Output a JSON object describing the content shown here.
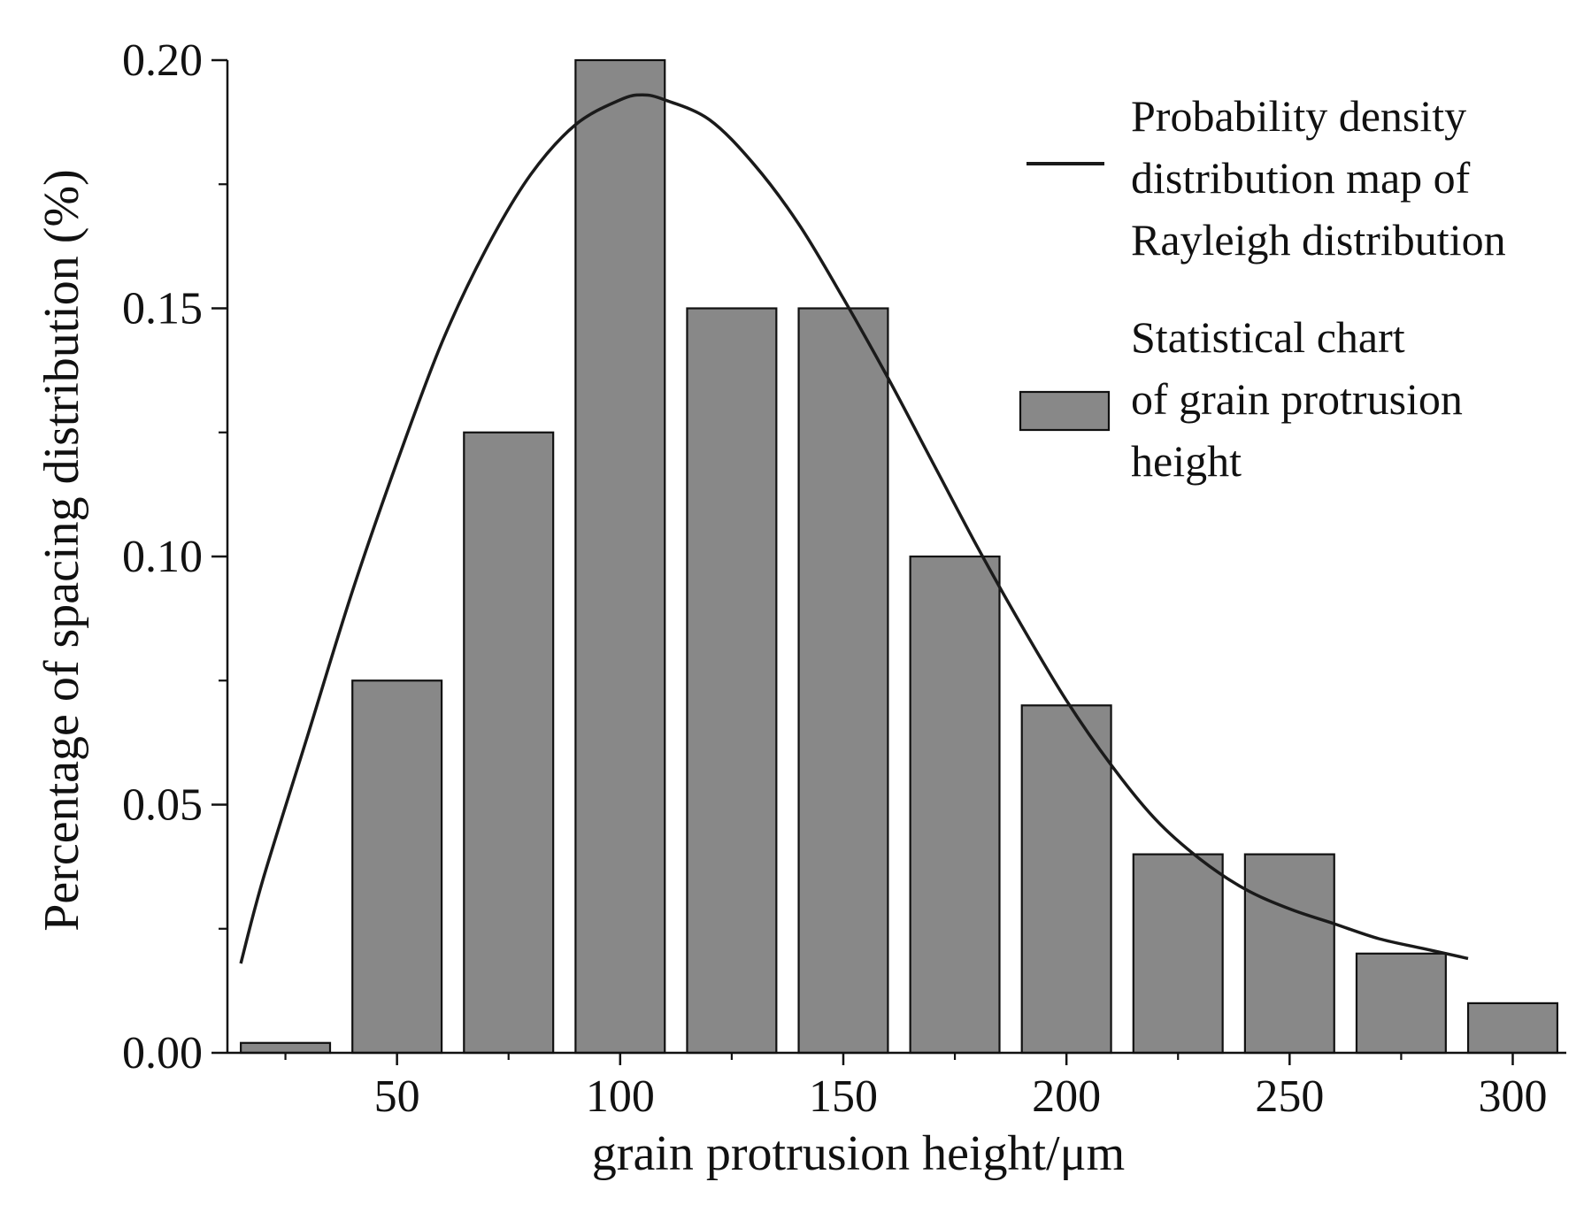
{
  "chart_data": {
    "type": "bar",
    "title": "",
    "xlabel": "grain protrusion height/μm",
    "ylabel": "Percentage of spacing distribution (%)",
    "xlim": [
      12,
      312
    ],
    "ylim": [
      0,
      0.2
    ],
    "x_ticks": [
      50,
      100,
      150,
      200,
      250,
      300
    ],
    "x_tick_labels": [
      "50",
      "100",
      "150",
      "200",
      "250",
      "300"
    ],
    "y_ticks": [
      0,
      0.05,
      0.1,
      0.15,
      0.2
    ],
    "y_tick_labels": [
      "0.00",
      "0.05",
      "0.10",
      "0.15",
      "0.20"
    ],
    "bar_width": 20,
    "series": [
      {
        "name": "Statistical chart of grain protrusion height",
        "type": "bar",
        "color": "#888888",
        "x": [
          25,
          50,
          75,
          100,
          125,
          150,
          175,
          200,
          225,
          250,
          275,
          300
        ],
        "values": [
          0.002,
          0.075,
          0.125,
          0.2,
          0.15,
          0.15,
          0.1,
          0.07,
          0.04,
          0.04,
          0.02,
          0.01
        ]
      },
      {
        "name": "Probability density distribution map of Rayleigh distribution",
        "type": "line",
        "color": "#1a1a1a",
        "x": [
          15,
          20,
          30,
          40,
          50,
          60,
          70,
          80,
          90,
          100,
          105,
          110,
          120,
          130,
          140,
          150,
          160,
          170,
          180,
          190,
          200,
          210,
          220,
          230,
          240,
          250,
          260,
          270,
          280,
          290
        ],
        "values": [
          0.018,
          0.035,
          0.064,
          0.093,
          0.119,
          0.143,
          0.162,
          0.177,
          0.187,
          0.192,
          0.193,
          0.192,
          0.188,
          0.179,
          0.167,
          0.152,
          0.136,
          0.119,
          0.102,
          0.086,
          0.071,
          0.058,
          0.047,
          0.039,
          0.033,
          0.029,
          0.026,
          0.023,
          0.021,
          0.019
        ]
      }
    ],
    "legend": {
      "placement": "top-right",
      "entries": [
        {
          "series": 1,
          "lines": [
            "Probability density",
            "distribution map of",
            "Rayleigh distribution"
          ]
        },
        {
          "series": 0,
          "lines": [
            "Statistical chart",
            "of grain protrusion",
            "height"
          ]
        }
      ]
    }
  }
}
